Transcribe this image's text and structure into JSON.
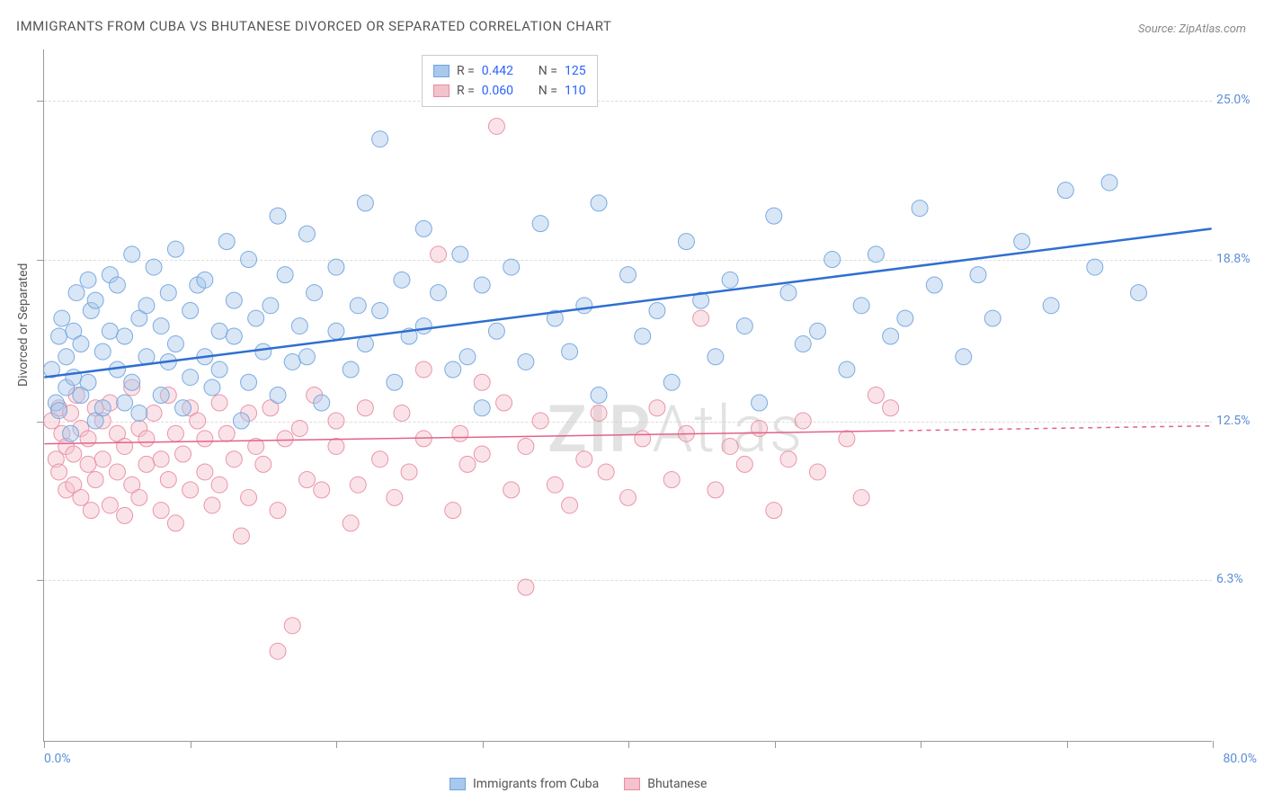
{
  "title": "IMMIGRANTS FROM CUBA VS BHUTANESE DIVORCED OR SEPARATED CORRELATION CHART",
  "source": "Source: ZipAtlas.com",
  "ylabel": "Divorced or Separated",
  "watermark_a": "ZIP",
  "watermark_b": "Atlas",
  "chart": {
    "type": "scatter",
    "xlim": [
      0,
      80
    ],
    "ylim": [
      0,
      27
    ],
    "x_min_label": "0.0%",
    "x_max_label": "80.0%",
    "y_ticks": [
      6.3,
      12.5,
      18.8,
      25.0
    ],
    "y_tick_labels": [
      "6.3%",
      "12.5%",
      "18.8%",
      "25.0%"
    ],
    "x_tick_positions": [
      0,
      10,
      20,
      30,
      40,
      50,
      60,
      70,
      80
    ],
    "grid_color": "#dddddd",
    "axis_color": "#999999",
    "axis_value_color": "#5b8fd6",
    "background_color": "#ffffff",
    "marker_radius": 9,
    "marker_opacity": 0.45,
    "marker_stroke_opacity": 0.9,
    "line_width_a": 2.5,
    "line_width_b": 1.5,
    "series": [
      {
        "key": "cuba",
        "label": "Immigrants from Cuba",
        "fill": "#a8c8ec",
        "stroke": "#6fa3de",
        "line_color": "#2f6fd0",
        "r": "0.442",
        "n": "125",
        "trend": {
          "x1": 0,
          "y1": 14.2,
          "x2": 80,
          "y2": 20.0,
          "solid_until": 80
        }
      },
      {
        "key": "bhutanese",
        "label": "Bhutanese",
        "fill": "#f4c2cd",
        "stroke": "#e88ba0",
        "line_color": "#e36387",
        "r": "0.060",
        "n": "110",
        "trend": {
          "x1": 0,
          "y1": 11.6,
          "x2": 80,
          "y2": 12.3,
          "solid_until": 58
        }
      }
    ],
    "points_cuba": [
      [
        0.5,
        14.5
      ],
      [
        0.8,
        13.2
      ],
      [
        1.0,
        15.8
      ],
      [
        1.0,
        12.9
      ],
      [
        1.2,
        16.5
      ],
      [
        1.5,
        13.8
      ],
      [
        1.5,
        15.0
      ],
      [
        1.8,
        12.0
      ],
      [
        2.0,
        14.2
      ],
      [
        2.0,
        16.0
      ],
      [
        2.2,
        17.5
      ],
      [
        2.5,
        13.5
      ],
      [
        2.5,
        15.5
      ],
      [
        3.0,
        18.0
      ],
      [
        3.0,
        14.0
      ],
      [
        3.2,
        16.8
      ],
      [
        3.5,
        12.5
      ],
      [
        3.5,
        17.2
      ],
      [
        4.0,
        15.2
      ],
      [
        4.0,
        13.0
      ],
      [
        4.5,
        18.2
      ],
      [
        4.5,
        16.0
      ],
      [
        5.0,
        14.5
      ],
      [
        5.0,
        17.8
      ],
      [
        5.5,
        13.2
      ],
      [
        5.5,
        15.8
      ],
      [
        6.0,
        19.0
      ],
      [
        6.0,
        14.0
      ],
      [
        6.5,
        16.5
      ],
      [
        6.5,
        12.8
      ],
      [
        7.0,
        17.0
      ],
      [
        7.0,
        15.0
      ],
      [
        7.5,
        18.5
      ],
      [
        8.0,
        13.5
      ],
      [
        8.0,
        16.2
      ],
      [
        8.5,
        14.8
      ],
      [
        8.5,
        17.5
      ],
      [
        9.0,
        15.5
      ],
      [
        9.0,
        19.2
      ],
      [
        9.5,
        13.0
      ],
      [
        10.0,
        16.8
      ],
      [
        10.0,
        14.2
      ],
      [
        10.5,
        17.8
      ],
      [
        11.0,
        15.0
      ],
      [
        11.0,
        18.0
      ],
      [
        11.5,
        13.8
      ],
      [
        12.0,
        16.0
      ],
      [
        12.0,
        14.5
      ],
      [
        12.5,
        19.5
      ],
      [
        13.0,
        15.8
      ],
      [
        13.0,
        17.2
      ],
      [
        13.5,
        12.5
      ],
      [
        14.0,
        18.8
      ],
      [
        14.0,
        14.0
      ],
      [
        14.5,
        16.5
      ],
      [
        15.0,
        15.2
      ],
      [
        15.5,
        17.0
      ],
      [
        16.0,
        20.5
      ],
      [
        16.0,
        13.5
      ],
      [
        16.5,
        18.2
      ],
      [
        17.0,
        14.8
      ],
      [
        17.5,
        16.2
      ],
      [
        18.0,
        19.8
      ],
      [
        18.0,
        15.0
      ],
      [
        18.5,
        17.5
      ],
      [
        19.0,
        13.2
      ],
      [
        20.0,
        16.0
      ],
      [
        20.0,
        18.5
      ],
      [
        21.0,
        14.5
      ],
      [
        21.5,
        17.0
      ],
      [
        22.0,
        21.0
      ],
      [
        22.0,
        15.5
      ],
      [
        23.0,
        23.5
      ],
      [
        23.0,
        16.8
      ],
      [
        24.0,
        14.0
      ],
      [
        24.5,
        18.0
      ],
      [
        25.0,
        15.8
      ],
      [
        26.0,
        20.0
      ],
      [
        26.0,
        16.2
      ],
      [
        27.0,
        17.5
      ],
      [
        28.0,
        14.5
      ],
      [
        28.5,
        19.0
      ],
      [
        29.0,
        15.0
      ],
      [
        30.0,
        13.0
      ],
      [
        30.0,
        17.8
      ],
      [
        31.0,
        16.0
      ],
      [
        32.0,
        18.5
      ],
      [
        33.0,
        14.8
      ],
      [
        34.0,
        20.2
      ],
      [
        35.0,
        16.5
      ],
      [
        36.0,
        15.2
      ],
      [
        37.0,
        17.0
      ],
      [
        38.0,
        21.0
      ],
      [
        38.0,
        13.5
      ],
      [
        40.0,
        18.2
      ],
      [
        41.0,
        15.8
      ],
      [
        42.0,
        16.8
      ],
      [
        43.0,
        14.0
      ],
      [
        44.0,
        19.5
      ],
      [
        45.0,
        17.2
      ],
      [
        46.0,
        15.0
      ],
      [
        47.0,
        18.0
      ],
      [
        48.0,
        16.2
      ],
      [
        49.0,
        13.2
      ],
      [
        50.0,
        20.5
      ],
      [
        51.0,
        17.5
      ],
      [
        52.0,
        15.5
      ],
      [
        53.0,
        16.0
      ],
      [
        54.0,
        18.8
      ],
      [
        55.0,
        14.5
      ],
      [
        56.0,
        17.0
      ],
      [
        57.0,
        19.0
      ],
      [
        58.0,
        15.8
      ],
      [
        59.0,
        16.5
      ],
      [
        60.0,
        20.8
      ],
      [
        61.0,
        17.8
      ],
      [
        63.0,
        15.0
      ],
      [
        64.0,
        18.2
      ],
      [
        65.0,
        16.5
      ],
      [
        67.0,
        19.5
      ],
      [
        69.0,
        17.0
      ],
      [
        70.0,
        21.5
      ],
      [
        72.0,
        18.5
      ],
      [
        73.0,
        21.8
      ],
      [
        75.0,
        17.5
      ]
    ],
    "points_bhutanese": [
      [
        0.5,
        12.5
      ],
      [
        0.8,
        11.0
      ],
      [
        1.0,
        13.0
      ],
      [
        1.0,
        10.5
      ],
      [
        1.2,
        12.0
      ],
      [
        1.5,
        11.5
      ],
      [
        1.5,
        9.8
      ],
      [
        1.8,
        12.8
      ],
      [
        2.0,
        10.0
      ],
      [
        2.0,
        11.2
      ],
      [
        2.2,
        13.5
      ],
      [
        2.5,
        9.5
      ],
      [
        2.5,
        12.2
      ],
      [
        3.0,
        10.8
      ],
      [
        3.0,
        11.8
      ],
      [
        3.2,
        9.0
      ],
      [
        3.5,
        13.0
      ],
      [
        3.5,
        10.2
      ],
      [
        4.0,
        12.5
      ],
      [
        4.0,
        11.0
      ],
      [
        4.5,
        9.2
      ],
      [
        4.5,
        13.2
      ],
      [
        5.0,
        10.5
      ],
      [
        5.0,
        12.0
      ],
      [
        5.5,
        11.5
      ],
      [
        5.5,
        8.8
      ],
      [
        6.0,
        13.8
      ],
      [
        6.0,
        10.0
      ],
      [
        6.5,
        12.2
      ],
      [
        6.5,
        9.5
      ],
      [
        7.0,
        11.8
      ],
      [
        7.0,
        10.8
      ],
      [
        7.5,
        12.8
      ],
      [
        8.0,
        9.0
      ],
      [
        8.0,
        11.0
      ],
      [
        8.5,
        13.5
      ],
      [
        8.5,
        10.2
      ],
      [
        9.0,
        12.0
      ],
      [
        9.0,
        8.5
      ],
      [
        9.5,
        11.2
      ],
      [
        10.0,
        13.0
      ],
      [
        10.0,
        9.8
      ],
      [
        10.5,
        12.5
      ],
      [
        11.0,
        10.5
      ],
      [
        11.0,
        11.8
      ],
      [
        11.5,
        9.2
      ],
      [
        12.0,
        13.2
      ],
      [
        12.0,
        10.0
      ],
      [
        12.5,
        12.0
      ],
      [
        13.0,
        11.0
      ],
      [
        13.5,
        8.0
      ],
      [
        14.0,
        12.8
      ],
      [
        14.0,
        9.5
      ],
      [
        14.5,
        11.5
      ],
      [
        15.0,
        10.8
      ],
      [
        15.5,
        13.0
      ],
      [
        16.0,
        3.5
      ],
      [
        16.0,
        9.0
      ],
      [
        16.5,
        11.8
      ],
      [
        17.0,
        4.5
      ],
      [
        17.5,
        12.2
      ],
      [
        18.0,
        10.2
      ],
      [
        18.5,
        13.5
      ],
      [
        19.0,
        9.8
      ],
      [
        20.0,
        11.5
      ],
      [
        20.0,
        12.5
      ],
      [
        21.0,
        8.5
      ],
      [
        21.5,
        10.0
      ],
      [
        22.0,
        13.0
      ],
      [
        23.0,
        11.0
      ],
      [
        24.0,
        9.5
      ],
      [
        24.5,
        12.8
      ],
      [
        25.0,
        10.5
      ],
      [
        26.0,
        14.5
      ],
      [
        26.0,
        11.8
      ],
      [
        27.0,
        19.0
      ],
      [
        28.0,
        9.0
      ],
      [
        28.5,
        12.0
      ],
      [
        29.0,
        10.8
      ],
      [
        30.0,
        14.0
      ],
      [
        30.0,
        11.2
      ],
      [
        31.0,
        24.0
      ],
      [
        31.5,
        13.2
      ],
      [
        32.0,
        9.8
      ],
      [
        33.0,
        6.0
      ],
      [
        33.0,
        11.5
      ],
      [
        34.0,
        12.5
      ],
      [
        35.0,
        10.0
      ],
      [
        36.0,
        9.2
      ],
      [
        37.0,
        11.0
      ],
      [
        38.0,
        12.8
      ],
      [
        38.5,
        10.5
      ],
      [
        40.0,
        9.5
      ],
      [
        41.0,
        11.8
      ],
      [
        42.0,
        13.0
      ],
      [
        43.0,
        10.2
      ],
      [
        44.0,
        12.0
      ],
      [
        45.0,
        16.5
      ],
      [
        46.0,
        9.8
      ],
      [
        47.0,
        11.5
      ],
      [
        48.0,
        10.8
      ],
      [
        49.0,
        12.2
      ],
      [
        50.0,
        9.0
      ],
      [
        51.0,
        11.0
      ],
      [
        52.0,
        12.5
      ],
      [
        53.0,
        10.5
      ],
      [
        55.0,
        11.8
      ],
      [
        56.0,
        9.5
      ],
      [
        57.0,
        13.5
      ],
      [
        58.0,
        13.0
      ]
    ]
  }
}
